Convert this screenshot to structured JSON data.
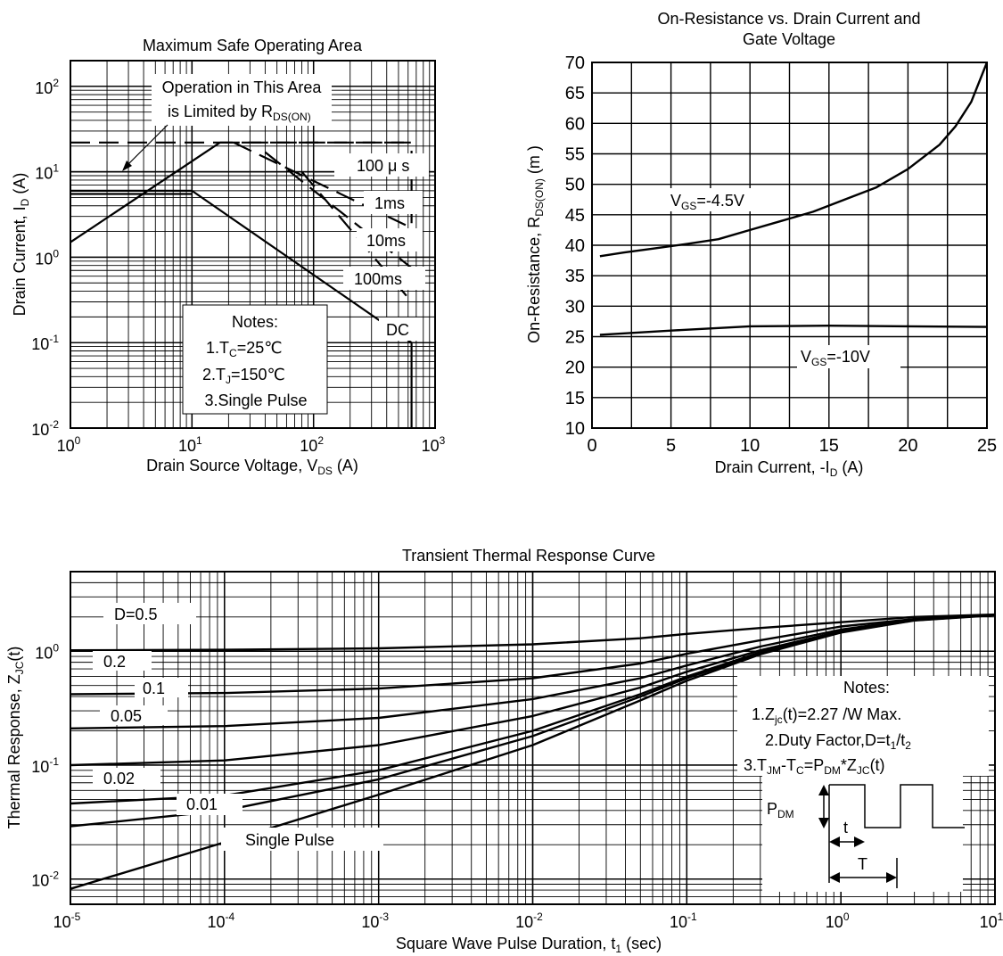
{
  "chart_data": [
    {
      "id": "soa",
      "type": "line",
      "title": "Maximum Safe Operating Area",
      "xlabel": "Drain Source Voltage, V",
      "xlabel_sub": "DS",
      "xlabel_tail": " (A)",
      "ylabel": "Drain Current, I",
      "ylabel_sub": "D",
      "ylabel_tail": " (A)",
      "x_scale": "log",
      "y_scale": "log",
      "xlim": [
        1,
        1000
      ],
      "ylim": [
        0.01,
        200
      ],
      "x_ticks": [
        {
          "base": "10",
          "exp": "0"
        },
        {
          "base": "10",
          "exp": "1"
        },
        {
          "base": "10",
          "exp": "2"
        },
        {
          "base": "10",
          "exp": "3"
        }
      ],
      "y_ticks": [
        {
          "base": "10",
          "exp": "-2"
        },
        {
          "base": "10",
          "exp": "-1"
        },
        {
          "base": "10",
          "exp": "0"
        },
        {
          "base": "10",
          "exp": "1"
        },
        {
          "base": "10",
          "exp": "2"
        }
      ],
      "grid": true,
      "annotation_limit": {
        "line1": "Operation in This Area",
        "line2": "is Limited by R",
        "line2_sub": "DS(ON)"
      },
      "series_labels": [
        "100 μ s",
        "1ms",
        "10ms",
        "100ms",
        "DC"
      ],
      "notes": {
        "title": "Notes:",
        "n1": "1.T",
        "n1_sub": "C",
        "n1_tail": "=25℃",
        "n2": "2.T",
        "n2_sub": "J",
        "n2_tail": "=150℃",
        "n3": "3.Single Pulse"
      },
      "series": [
        {
          "name": "rds_limit",
          "style": "solid",
          "x": [
            1,
            17
          ],
          "y": [
            1.5,
            22
          ]
        },
        {
          "name": "100 μ s",
          "style": "dashed",
          "x": [
            17,
            640,
            640
          ],
          "y": [
            22,
            22,
            2.5
          ]
        },
        {
          "name": "1ms",
          "style": "dashed",
          "x": [
            22,
            640
          ],
          "y": [
            22,
            2.2
          ]
        },
        {
          "name": "10ms",
          "style": "dashed",
          "x": [
            40,
            640
          ],
          "y": [
            17,
            0.75
          ]
        },
        {
          "name": "100ms",
          "style": "dashed",
          "x": [
            80,
            640
          ],
          "y": [
            10,
            0.3
          ]
        },
        {
          "name": "DC",
          "style": "solid",
          "x": [
            10,
            640,
            640
          ],
          "y": [
            6,
            0.1,
            0.01
          ]
        },
        {
          "name": "limit_top",
          "style": "dashed",
          "x": [
            1,
            640
          ],
          "y": [
            22,
            22
          ]
        },
        {
          "name": "hline_5",
          "style": "solid",
          "x": [
            1,
            10
          ],
          "y": [
            6,
            6
          ]
        },
        {
          "name": "hline_5b",
          "style": "solid",
          "x": [
            1,
            10
          ],
          "y": [
            5.5,
            5.5
          ]
        }
      ]
    },
    {
      "id": "rds",
      "type": "line",
      "title_line1": "On-Resistance vs. Drain Current and",
      "title_line2": "Gate Voltage",
      "xlabel": "Drain Current, -I",
      "xlabel_sub": "D",
      "xlabel_tail": " (A)",
      "ylabel": "On-Resistance, R",
      "ylabel_sub": "DS(ON)",
      "ylabel_tail": " (m   )",
      "xlim": [
        0,
        25
      ],
      "ylim": [
        10,
        70
      ],
      "x_ticks": [
        "0",
        "5",
        "10",
        "15",
        "20",
        "25"
      ],
      "y_ticks": [
        "10",
        "15",
        "20",
        "25",
        "30",
        "35",
        "40",
        "45",
        "50",
        "55",
        "60",
        "65",
        "70"
      ],
      "grid": true,
      "series": [
        {
          "name": "V_GS=-4.5V",
          "label": "V",
          "label_sub": "GS",
          "label_tail": "=-4.5V",
          "x": [
            0.5,
            2,
            4,
            6,
            8,
            10,
            12,
            14,
            16,
            18,
            20,
            22,
            23,
            24,
            25
          ],
          "y": [
            38.2,
            38.8,
            39.5,
            40.2,
            41,
            42.5,
            44,
            45.5,
            47.5,
            49.5,
            52.5,
            56.5,
            59.5,
            63.5,
            70
          ]
        },
        {
          "name": "V_GS=-10V",
          "label": "V",
          "label_sub": "GS",
          "label_tail": "=-10V",
          "x": [
            0.5,
            5,
            10,
            15,
            20,
            25
          ],
          "y": [
            25.3,
            26,
            26.7,
            26.8,
            26.7,
            26.6
          ]
        }
      ]
    },
    {
      "id": "thermal",
      "type": "line",
      "title": "Transient Thermal Response Curve",
      "xlabel": "Square Wave Pulse Duration, t",
      "xlabel_sub": "1",
      "xlabel_tail": " (sec)",
      "ylabel": "Thermal Response, Z",
      "ylabel_sub": "JC",
      "ylabel_tail": "(t)",
      "x_scale": "log",
      "y_scale": "log",
      "xlim": [
        1e-05,
        10
      ],
      "ylim": [
        0.006,
        5
      ],
      "x_ticks": [
        {
          "base": "10",
          "exp": "-5"
        },
        {
          "base": "10",
          "exp": "-4"
        },
        {
          "base": "10",
          "exp": "-3"
        },
        {
          "base": "10",
          "exp": "-2"
        },
        {
          "base": "10",
          "exp": "-1"
        },
        {
          "base": "10",
          "exp": "0"
        },
        {
          "base": "10",
          "exp": "1"
        }
      ],
      "y_ticks": [
        {
          "base": "10",
          "exp": "-2"
        },
        {
          "base": "10",
          "exp": "-1"
        },
        {
          "base": "10",
          "exp": "0"
        }
      ],
      "grid": true,
      "notes": {
        "title": "Notes:",
        "n1": "1.Z",
        "n1_sub": "jc",
        "n1_tail": "(t)=2.27    /W Max.",
        "n2": "2.Duty Factor,D=t",
        "n2_sub1": "1",
        "n2_mid": "/t",
        "n2_sub2": "2",
        "n3": "3.T",
        "n3_sub1": "JM",
        "n3_mid1": "-T",
        "n3_sub2": "C",
        "n3_mid2": "=P",
        "n3_sub3": "DM",
        "n3_mid3": "*Z",
        "n3_sub4": "JC",
        "n3_tail": "(t)"
      },
      "inset": {
        "p_label": "P",
        "p_sub": "DM",
        "t_label": "t",
        "T_label": "T"
      },
      "series": [
        {
          "name": "D=0.5",
          "x": [
            1e-05,
            0.0001,
            0.001,
            0.01,
            0.05,
            0.1,
            0.3,
            1,
            3,
            10
          ],
          "y": [
            1.02,
            1.03,
            1.06,
            1.15,
            1.3,
            1.42,
            1.6,
            1.8,
            2.0,
            2.1
          ]
        },
        {
          "name": "0.2",
          "x": [
            1e-05,
            0.0001,
            0.001,
            0.01,
            0.05,
            0.1,
            0.3,
            1,
            3,
            10
          ],
          "y": [
            0.42,
            0.43,
            0.47,
            0.58,
            0.78,
            0.95,
            1.25,
            1.65,
            1.92,
            2.08
          ]
        },
        {
          "name": "0.1",
          "x": [
            1e-05,
            0.0001,
            0.001,
            0.01,
            0.05,
            0.1,
            0.3,
            1,
            3,
            10
          ],
          "y": [
            0.21,
            0.22,
            0.26,
            0.38,
            0.58,
            0.75,
            1.1,
            1.55,
            1.9,
            2.08
          ]
        },
        {
          "name": "0.05",
          "x": [
            1e-05,
            0.0001,
            0.001,
            0.01,
            0.05,
            0.1,
            0.3,
            1,
            3,
            10
          ],
          "y": [
            0.1,
            0.11,
            0.15,
            0.27,
            0.48,
            0.66,
            1.02,
            1.5,
            1.88,
            2.08
          ]
        },
        {
          "name": "0.02",
          "x": [
            1e-05,
            0.0001,
            0.001,
            0.01,
            0.05,
            0.1,
            0.3,
            1,
            3,
            10
          ],
          "y": [
            0.046,
            0.054,
            0.09,
            0.2,
            0.42,
            0.6,
            0.98,
            1.48,
            1.87,
            2.08
          ]
        },
        {
          "name": "0.01",
          "x": [
            1e-05,
            0.0001,
            0.001,
            0.01,
            0.05,
            0.1,
            0.3,
            1,
            3,
            10
          ],
          "y": [
            0.029,
            0.04,
            0.075,
            0.18,
            0.4,
            0.58,
            0.96,
            1.47,
            1.87,
            2.08
          ]
        },
        {
          "name": "Single Pulse",
          "x": [
            1e-05,
            0.0001,
            0.001,
            0.01,
            0.05,
            0.1,
            0.3,
            1,
            3,
            10
          ],
          "y": [
            0.0082,
            0.021,
            0.055,
            0.15,
            0.37,
            0.55,
            0.94,
            1.46,
            1.86,
            2.07
          ]
        }
      ]
    }
  ]
}
